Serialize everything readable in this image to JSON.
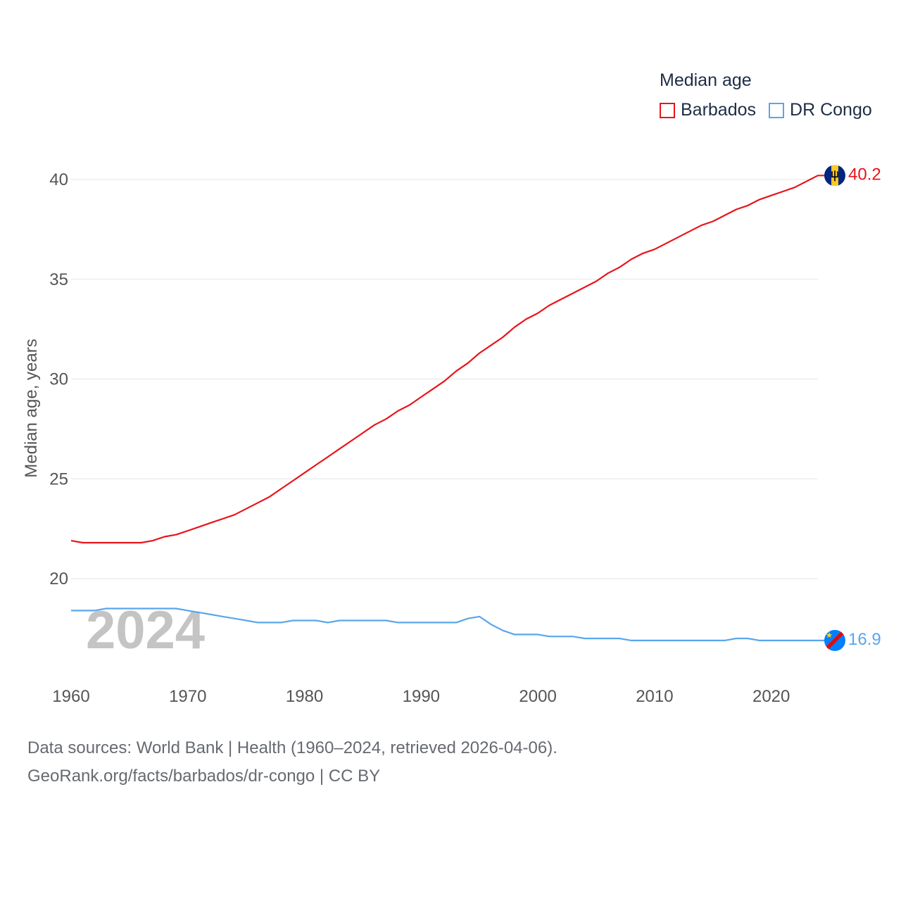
{
  "legend": {
    "title": "Median age",
    "items": [
      {
        "label": "Barbados",
        "color": "#e8141a"
      },
      {
        "label": "DR Congo",
        "color": "#5aa6ea"
      }
    ]
  },
  "chart_data": {
    "type": "line",
    "title": "Median age",
    "ylabel": "Median age, years",
    "xlabel": "",
    "xlim": [
      1960,
      2024
    ],
    "ylim": [
      16,
      42
    ],
    "yticks": [
      20,
      25,
      30,
      35,
      40
    ],
    "xticks": [
      1960,
      1970,
      1980,
      1990,
      2000,
      2010,
      2020
    ],
    "grid": true,
    "year_watermark": "2024",
    "x": [
      1960,
      1961,
      1962,
      1963,
      1964,
      1965,
      1966,
      1967,
      1968,
      1969,
      1970,
      1971,
      1972,
      1973,
      1974,
      1975,
      1976,
      1977,
      1978,
      1979,
      1980,
      1981,
      1982,
      1983,
      1984,
      1985,
      1986,
      1987,
      1988,
      1989,
      1990,
      1991,
      1992,
      1993,
      1994,
      1995,
      1996,
      1997,
      1998,
      1999,
      2000,
      2001,
      2002,
      2003,
      2004,
      2005,
      2006,
      2007,
      2008,
      2009,
      2010,
      2011,
      2012,
      2013,
      2014,
      2015,
      2016,
      2017,
      2018,
      2019,
      2020,
      2021,
      2022,
      2023,
      2024
    ],
    "series": [
      {
        "name": "Barbados",
        "color": "#e8141a",
        "end_label": "40.2",
        "values": [
          21.9,
          21.8,
          21.8,
          21.8,
          21.8,
          21.8,
          21.8,
          21.9,
          22.1,
          22.2,
          22.4,
          22.6,
          22.8,
          23.0,
          23.2,
          23.5,
          23.8,
          24.1,
          24.5,
          24.9,
          25.3,
          25.7,
          26.1,
          26.5,
          26.9,
          27.3,
          27.7,
          28.0,
          28.4,
          28.7,
          29.1,
          29.5,
          29.9,
          30.4,
          30.8,
          31.3,
          31.7,
          32.1,
          32.6,
          33.0,
          33.3,
          33.7,
          34.0,
          34.3,
          34.6,
          34.9,
          35.3,
          35.6,
          36.0,
          36.3,
          36.5,
          36.8,
          37.1,
          37.4,
          37.7,
          37.9,
          38.2,
          38.5,
          38.7,
          39.0,
          39.2,
          39.4,
          39.6,
          39.9,
          40.2
        ]
      },
      {
        "name": "DR Congo",
        "color": "#5aa6ea",
        "end_label": "16.9",
        "values": [
          18.4,
          18.4,
          18.4,
          18.5,
          18.5,
          18.5,
          18.5,
          18.5,
          18.5,
          18.5,
          18.4,
          18.3,
          18.2,
          18.1,
          18.0,
          17.9,
          17.8,
          17.8,
          17.8,
          17.9,
          17.9,
          17.9,
          17.8,
          17.9,
          17.9,
          17.9,
          17.9,
          17.9,
          17.8,
          17.8,
          17.8,
          17.8,
          17.8,
          17.8,
          18.0,
          18.1,
          17.7,
          17.4,
          17.2,
          17.2,
          17.2,
          17.1,
          17.1,
          17.1,
          17.0,
          17.0,
          17.0,
          17.0,
          16.9,
          16.9,
          16.9,
          16.9,
          16.9,
          16.9,
          16.9,
          16.9,
          16.9,
          17.0,
          17.0,
          16.9,
          16.9,
          16.9,
          16.9,
          16.9,
          16.9
        ]
      }
    ]
  },
  "footer": {
    "line1": "Data sources: World Bank | Health (1960–2024, retrieved 2026-04-06).",
    "line2": "GeoRank.org/facts/barbados/dr-congo | CC BY"
  }
}
